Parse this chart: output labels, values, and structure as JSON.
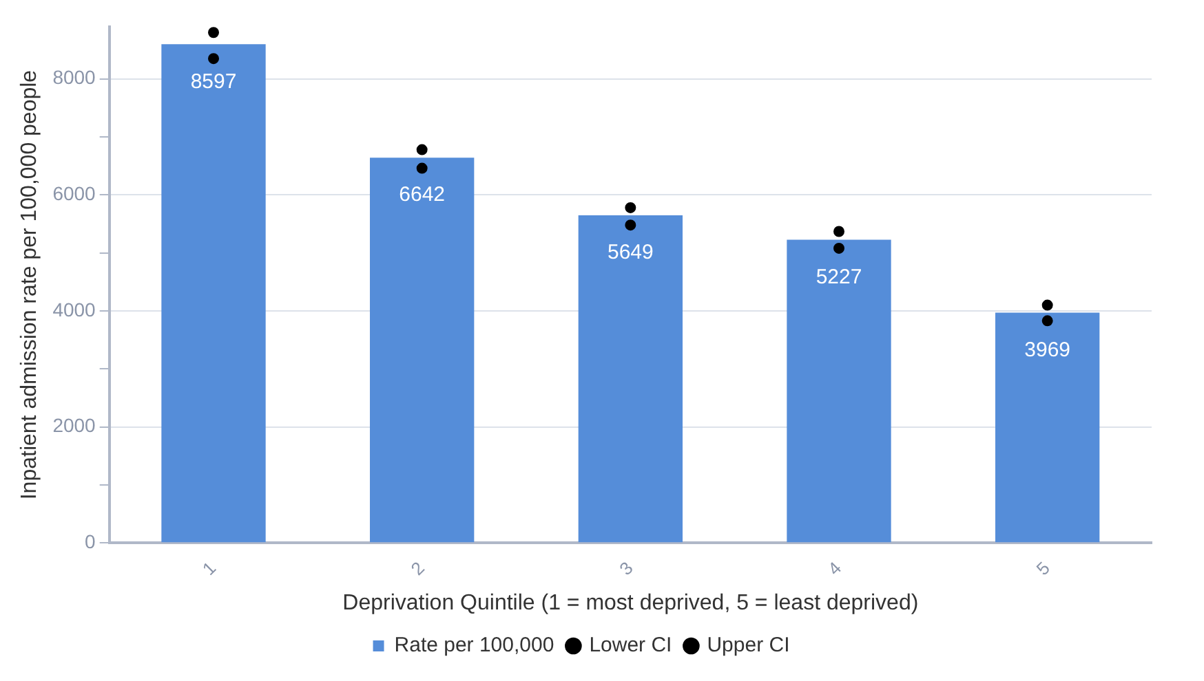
{
  "chart_data": {
    "type": "bar",
    "xlabel": "Deprivation Quintile (1 = most deprived, 5 = least deprived)",
    "ylabel": "Inpatient admission rate per 100,000 people",
    "categories": [
      "1",
      "2",
      "3",
      "4",
      "5"
    ],
    "series": [
      {
        "name": "Rate per 100,000",
        "color": "#558dd9",
        "values": [
          8597,
          6642,
          5649,
          5227,
          3969
        ],
        "value_labels": [
          "8597",
          "6642",
          "5649",
          "5227",
          "3969"
        ]
      },
      {
        "name": "Lower CI",
        "type": "scatter",
        "color": "#000000",
        "x": [
          "1",
          "2",
          "3",
          "4",
          "5"
        ],
        "values": [
          8350,
          6460,
          5480,
          5080,
          3830
        ]
      },
      {
        "name": "Upper CI",
        "type": "scatter",
        "color": "#000000",
        "x": [
          "1",
          "2",
          "3",
          "4",
          "5"
        ],
        "values": [
          8800,
          6780,
          5780,
          5370,
          4100
        ]
      }
    ],
    "ylim": [
      0,
      8900
    ],
    "yticks": [
      0,
      {
        "value": 1000,
        "label": null
      },
      2000,
      {
        "value": 3000,
        "label": null
      },
      4000,
      {
        "value": 5000,
        "label": null
      },
      6000,
      {
        "value": 7000,
        "label": null
      },
      8000
    ],
    "grid": "y",
    "legend": "bottom",
    "marker": "circle"
  }
}
